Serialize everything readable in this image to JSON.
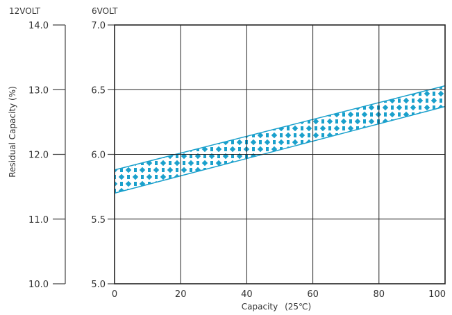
{
  "chart_data": {
    "type": "area",
    "title": "",
    "xlabel": "Capacity",
    "xlabel_suffix": "(25℃)",
    "ylabel": "Residual Capacity (%)",
    "x_ticks": [
      "0",
      "20",
      "40",
      "60",
      "80",
      "100"
    ],
    "xlim": [
      0,
      100
    ],
    "grid": true,
    "y_axes": [
      {
        "unit": "12VOLT",
        "ticks": [
          "10.0",
          "11.0",
          "12.0",
          "13.0",
          "14.0"
        ],
        "ylim": [
          10.0,
          14.0
        ]
      },
      {
        "unit": "6VOLT",
        "ticks": [
          "5.0",
          "5.5",
          "6.0",
          "6.5",
          "7.0"
        ],
        "ylim": [
          5.0,
          7.0
        ]
      }
    ],
    "band": {
      "axis": "6VOLT",
      "x": [
        0,
        100
      ],
      "upper": [
        5.88,
        6.53
      ],
      "lower": [
        5.7,
        6.37
      ],
      "color": "#1aa0cc"
    }
  }
}
